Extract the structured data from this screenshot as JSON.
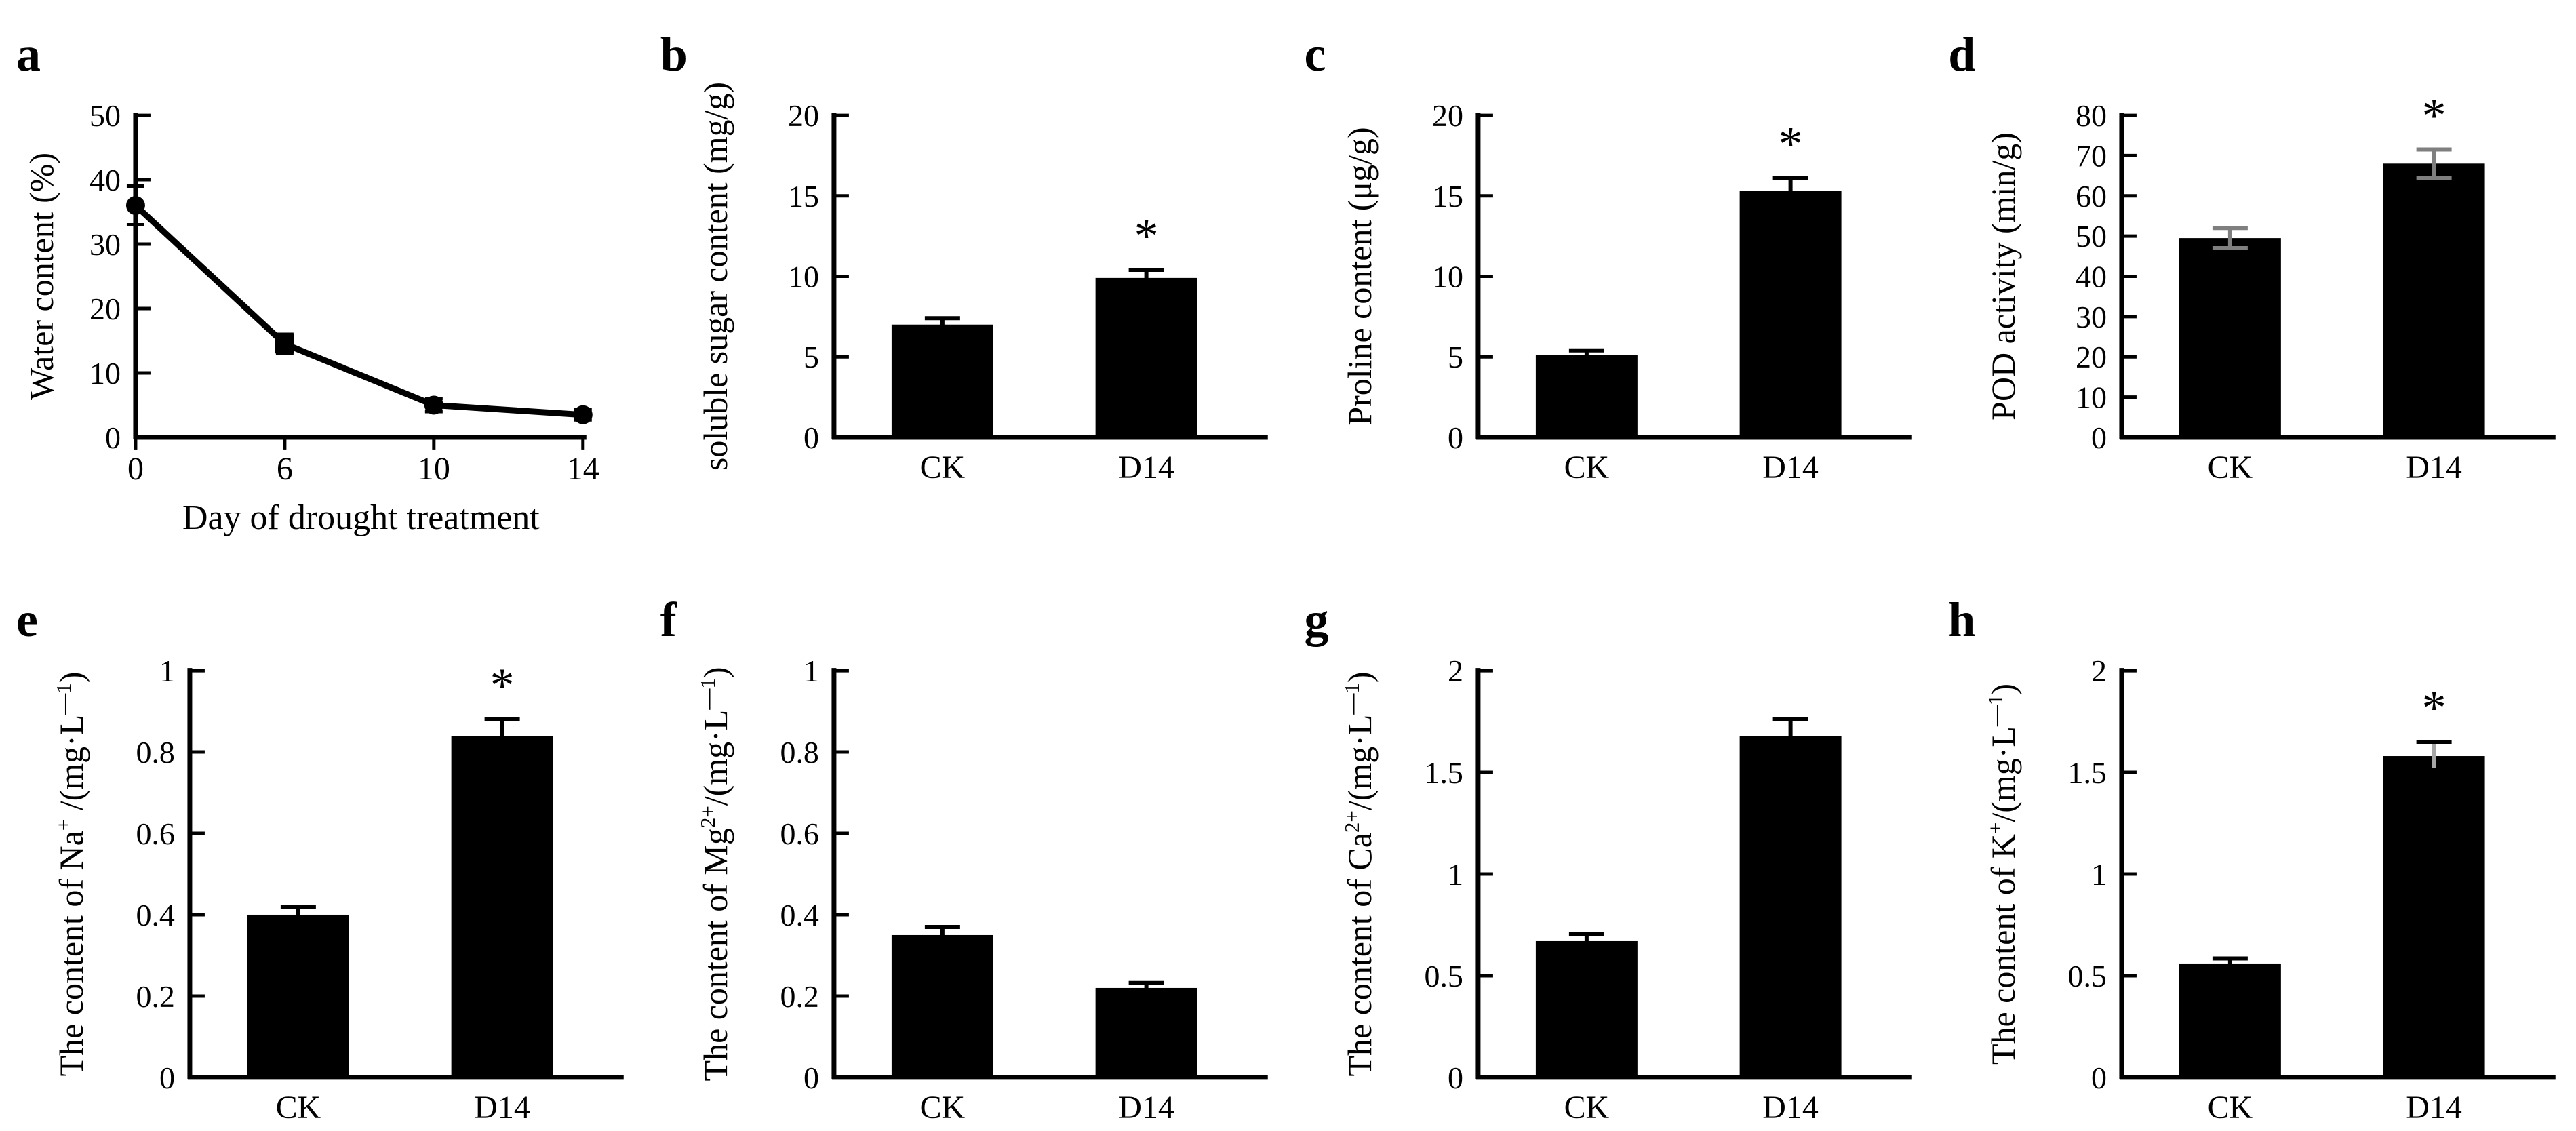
{
  "figure": {
    "description": "Eight-panel physiology figure comparing control (CK) and 14-day drought (D14) treatments",
    "background_color": "#ffffff",
    "bar_color": "#000000",
    "axis_color": "#000000",
    "gray_error_color": "#7f7f7f",
    "significance_marker": "*"
  },
  "chart_data": [
    {
      "id": "a",
      "type": "line",
      "ylabel": [
        [
          "Water content (%)",
          0
        ]
      ],
      "xlabel": "Day of drought treatment",
      "ylim": [
        0,
        50
      ],
      "yticks": [
        "0",
        "10",
        "20",
        "30",
        "40",
        "50"
      ],
      "categories": [
        "0",
        "6",
        "10",
        "14"
      ],
      "values": [
        36,
        14.5,
        5,
        3.5
      ],
      "errors": [
        3,
        1.5,
        1,
        0.8
      ],
      "markers": [
        "circle",
        "square",
        "circle",
        "circle"
      ],
      "sig": [
        "",
        "",
        "",
        ""
      ],
      "line_color": "#000000",
      "error_colors": [
        "#000000",
        "#000000",
        "#000000",
        "#000000"
      ],
      "grid": false,
      "legend": null
    },
    {
      "id": "b",
      "type": "bar",
      "ylabel": [
        [
          "soluble sugar content (mg/g)",
          0
        ]
      ],
      "xlabel": "",
      "ylim": [
        0,
        20
      ],
      "yticks": [
        "0",
        "5",
        "10",
        "15",
        "20"
      ],
      "categories": [
        "CK",
        "D14"
      ],
      "values": [
        7.0,
        9.9
      ],
      "errors": [
        0.4,
        0.5
      ],
      "sig": [
        "",
        "*"
      ],
      "error_colors": [
        "#000000",
        "#000000"
      ],
      "error_cap_colors": [
        "#000000",
        "#000000"
      ],
      "grid": false,
      "legend": null
    },
    {
      "id": "c",
      "type": "bar",
      "ylabel": [
        [
          "Proline content (μg/g)",
          0
        ]
      ],
      "xlabel": "",
      "ylim": [
        0,
        20
      ],
      "yticks": [
        "0",
        "5",
        "10",
        "15",
        "20"
      ],
      "categories": [
        "CK",
        "D14"
      ],
      "values": [
        5.1,
        15.3
      ],
      "errors": [
        0.3,
        0.8
      ],
      "sig": [
        "",
        "*"
      ],
      "error_colors": [
        "#000000",
        "#000000"
      ],
      "error_cap_colors": [
        "#000000",
        "#000000"
      ],
      "grid": false,
      "legend": null
    },
    {
      "id": "d",
      "type": "bar",
      "ylabel": [
        [
          "POD activity (min/g)",
          0
        ]
      ],
      "xlabel": "",
      "ylim": [
        0,
        80
      ],
      "yticks": [
        "0",
        "10",
        "20",
        "30",
        "40",
        "50",
        "60",
        "70",
        "80"
      ],
      "categories": [
        "CK",
        "D14"
      ],
      "values": [
        49.5,
        68
      ],
      "errors": [
        2.5,
        3.5
      ],
      "sig": [
        "",
        "*"
      ],
      "error_colors": [
        "#7f7f7f",
        "#7f7f7f"
      ],
      "error_cap_colors": [
        "#7f7f7f",
        "#7f7f7f"
      ],
      "grid": false,
      "legend": null
    },
    {
      "id": "e",
      "type": "bar",
      "ylabel": [
        [
          "The content of  Na",
          0
        ],
        [
          "+",
          1
        ],
        [
          " /(mg·L",
          0
        ],
        [
          "—1",
          1
        ],
        [
          ")",
          0
        ]
      ],
      "xlabel": "",
      "ylim": [
        0,
        1
      ],
      "yticks": [
        "0",
        "0.2",
        "0.4",
        "0.6",
        "0.8",
        "1"
      ],
      "categories": [
        "CK",
        "D14"
      ],
      "values": [
        0.4,
        0.84
      ],
      "errors": [
        0.02,
        0.04
      ],
      "sig": [
        "",
        "*"
      ],
      "error_colors": [
        "#000000",
        "#000000"
      ],
      "error_cap_colors": [
        "#000000",
        "#000000"
      ],
      "grid": false,
      "legend": null
    },
    {
      "id": "f",
      "type": "bar",
      "ylabel": [
        [
          "The content of  Mg",
          0
        ],
        [
          "2+",
          1
        ],
        [
          "/(mg·L",
          0
        ],
        [
          "—1",
          1
        ],
        [
          ")",
          0
        ]
      ],
      "xlabel": "",
      "ylim": [
        0,
        1
      ],
      "yticks": [
        "0",
        "0.2",
        "0.4",
        "0.6",
        "0.8",
        "1"
      ],
      "categories": [
        "CK",
        "D14"
      ],
      "values": [
        0.35,
        0.22
      ],
      "errors": [
        0.02,
        0.012
      ],
      "sig": [
        "",
        ""
      ],
      "error_colors": [
        "#000000",
        "#000000"
      ],
      "error_cap_colors": [
        "#000000",
        "#000000"
      ],
      "grid": false,
      "legend": null
    },
    {
      "id": "g",
      "type": "bar",
      "ylabel": [
        [
          "The content of  Ca",
          0
        ],
        [
          "2+",
          1
        ],
        [
          "/(mg·L",
          0
        ],
        [
          "—1",
          1
        ],
        [
          ")",
          0
        ]
      ],
      "xlabel": "",
      "ylim": [
        0,
        2
      ],
      "yticks": [
        "0",
        "0.5",
        "1",
        "1.5",
        "2"
      ],
      "categories": [
        "CK",
        "D14"
      ],
      "values": [
        0.67,
        1.68
      ],
      "errors": [
        0.035,
        0.08
      ],
      "sig": [
        "",
        ""
      ],
      "error_colors": [
        "#000000",
        "#000000"
      ],
      "error_cap_colors": [
        "#000000",
        "#000000"
      ],
      "grid": false,
      "legend": null
    },
    {
      "id": "h",
      "type": "bar",
      "ylabel": [
        [
          "The content of  K",
          0
        ],
        [
          "+",
          1
        ],
        [
          "/(mg·L",
          0
        ],
        [
          "—1",
          1
        ],
        [
          ")",
          0
        ]
      ],
      "xlabel": "",
      "ylim": [
        0,
        2
      ],
      "yticks": [
        "0",
        "0.5",
        "1",
        "1.5",
        "2"
      ],
      "categories": [
        "CK",
        "D14"
      ],
      "values": [
        0.56,
        1.58
      ],
      "errors": [
        0.025,
        0.07
      ],
      "sig": [
        "",
        "*"
      ],
      "error_colors": [
        "#000000",
        "#a6a6a6"
      ],
      "error_cap_colors": [
        "#000000",
        "#000000"
      ],
      "grid": false,
      "legend": null
    }
  ]
}
